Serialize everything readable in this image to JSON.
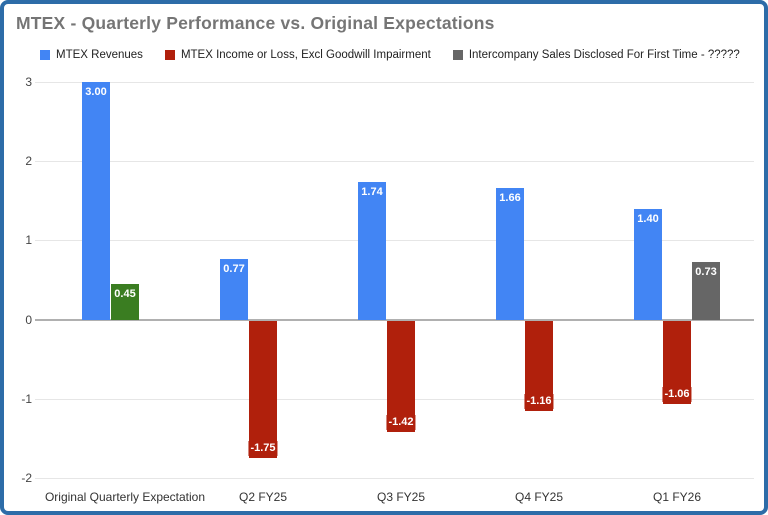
{
  "frame": {
    "border_color": "#2d6ca8",
    "background": "#ffffff"
  },
  "chart_data": {
    "type": "bar",
    "title": "MTEX - Quarterly Performance vs. Original Expectations",
    "title_color": "#757575",
    "categories": [
      "Original Quarterly Expectation",
      "Q2 FY25",
      "Q3 FY25",
      "Q4 FY25",
      "Q1 FY26"
    ],
    "series": [
      {
        "name": "MTEX Revenues",
        "color": "#4285f4",
        "values": [
          3.0,
          0.77,
          1.74,
          1.66,
          1.4
        ],
        "value_labels": [
          "3.00",
          "0.77",
          "1.74",
          "1.66",
          "1.40"
        ]
      },
      {
        "name": "MTEX Income or Loss, Excl Goodwill Impairment",
        "color": "#b0200c",
        "values": [
          0.45,
          -1.75,
          -1.42,
          -1.16,
          -1.06
        ],
        "point_colors": [
          "#3a7d21",
          null,
          null,
          null,
          null
        ],
        "value_labels": [
          "0.45",
          "-1.75",
          "-1.42",
          "-1.16",
          "-1.06"
        ]
      },
      {
        "name": "Intercompany Sales Disclosed For First Time - ?????",
        "color": "#666666",
        "values": [
          null,
          null,
          null,
          null,
          0.73
        ],
        "value_labels": [
          null,
          null,
          null,
          null,
          "0.73"
        ]
      }
    ],
    "ylim": [
      -2,
      3
    ],
    "yticks": [
      3,
      2,
      1,
      0,
      -1,
      -2
    ],
    "grid": true,
    "legend_position": "top",
    "axis_text_color": "#444444",
    "gridline_color": "#e6e6e6",
    "zero_line_color": "#b0b0b0",
    "bar_label_text_color": "#ffffff"
  }
}
